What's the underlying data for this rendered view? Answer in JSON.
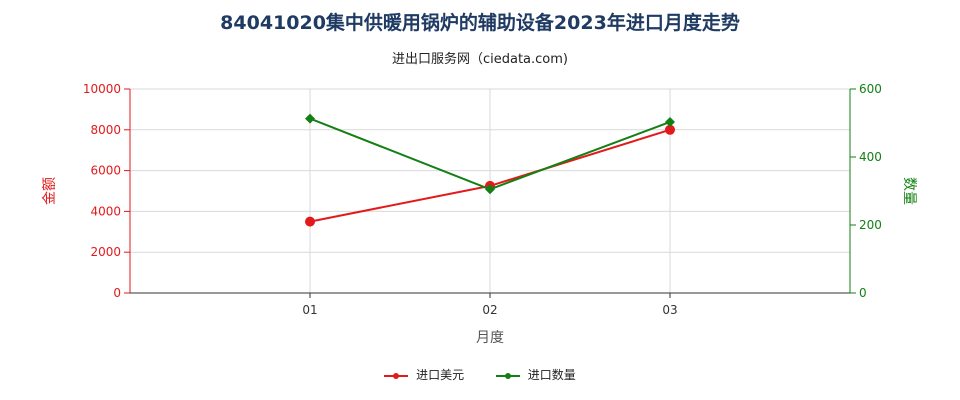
{
  "title": "84041020集中供暖用锅炉的辅助设备2023年进口月度走势",
  "subtitle": "进出口服务网（ciedata.com)",
  "colors": {
    "amount": "#e31a1c",
    "quantity": "#138013",
    "title": "#1f3b63"
  },
  "chart_data": {
    "type": "line",
    "categories": [
      "01",
      "02",
      "03"
    ],
    "xlabel": "月度",
    "ylabel_left": "金额",
    "ylabel_right": "数量",
    "ylim_left": [
      0,
      10000
    ],
    "yticks_left": [
      0,
      2000,
      4000,
      6000,
      8000,
      10000
    ],
    "ylim_right": [
      0,
      600
    ],
    "yticks_right": [
      0,
      200,
      400,
      600
    ],
    "grid": true,
    "legend_position": "bottom",
    "series": [
      {
        "name": "进口美元",
        "axis": "left",
        "marker": "circle",
        "color": "#e31a1c",
        "values": [
          3500,
          5250,
          8000
        ]
      },
      {
        "name": "进口数量",
        "axis": "right",
        "marker": "diamond",
        "color": "#138013",
        "values": [
          513,
          305,
          503
        ]
      }
    ]
  }
}
